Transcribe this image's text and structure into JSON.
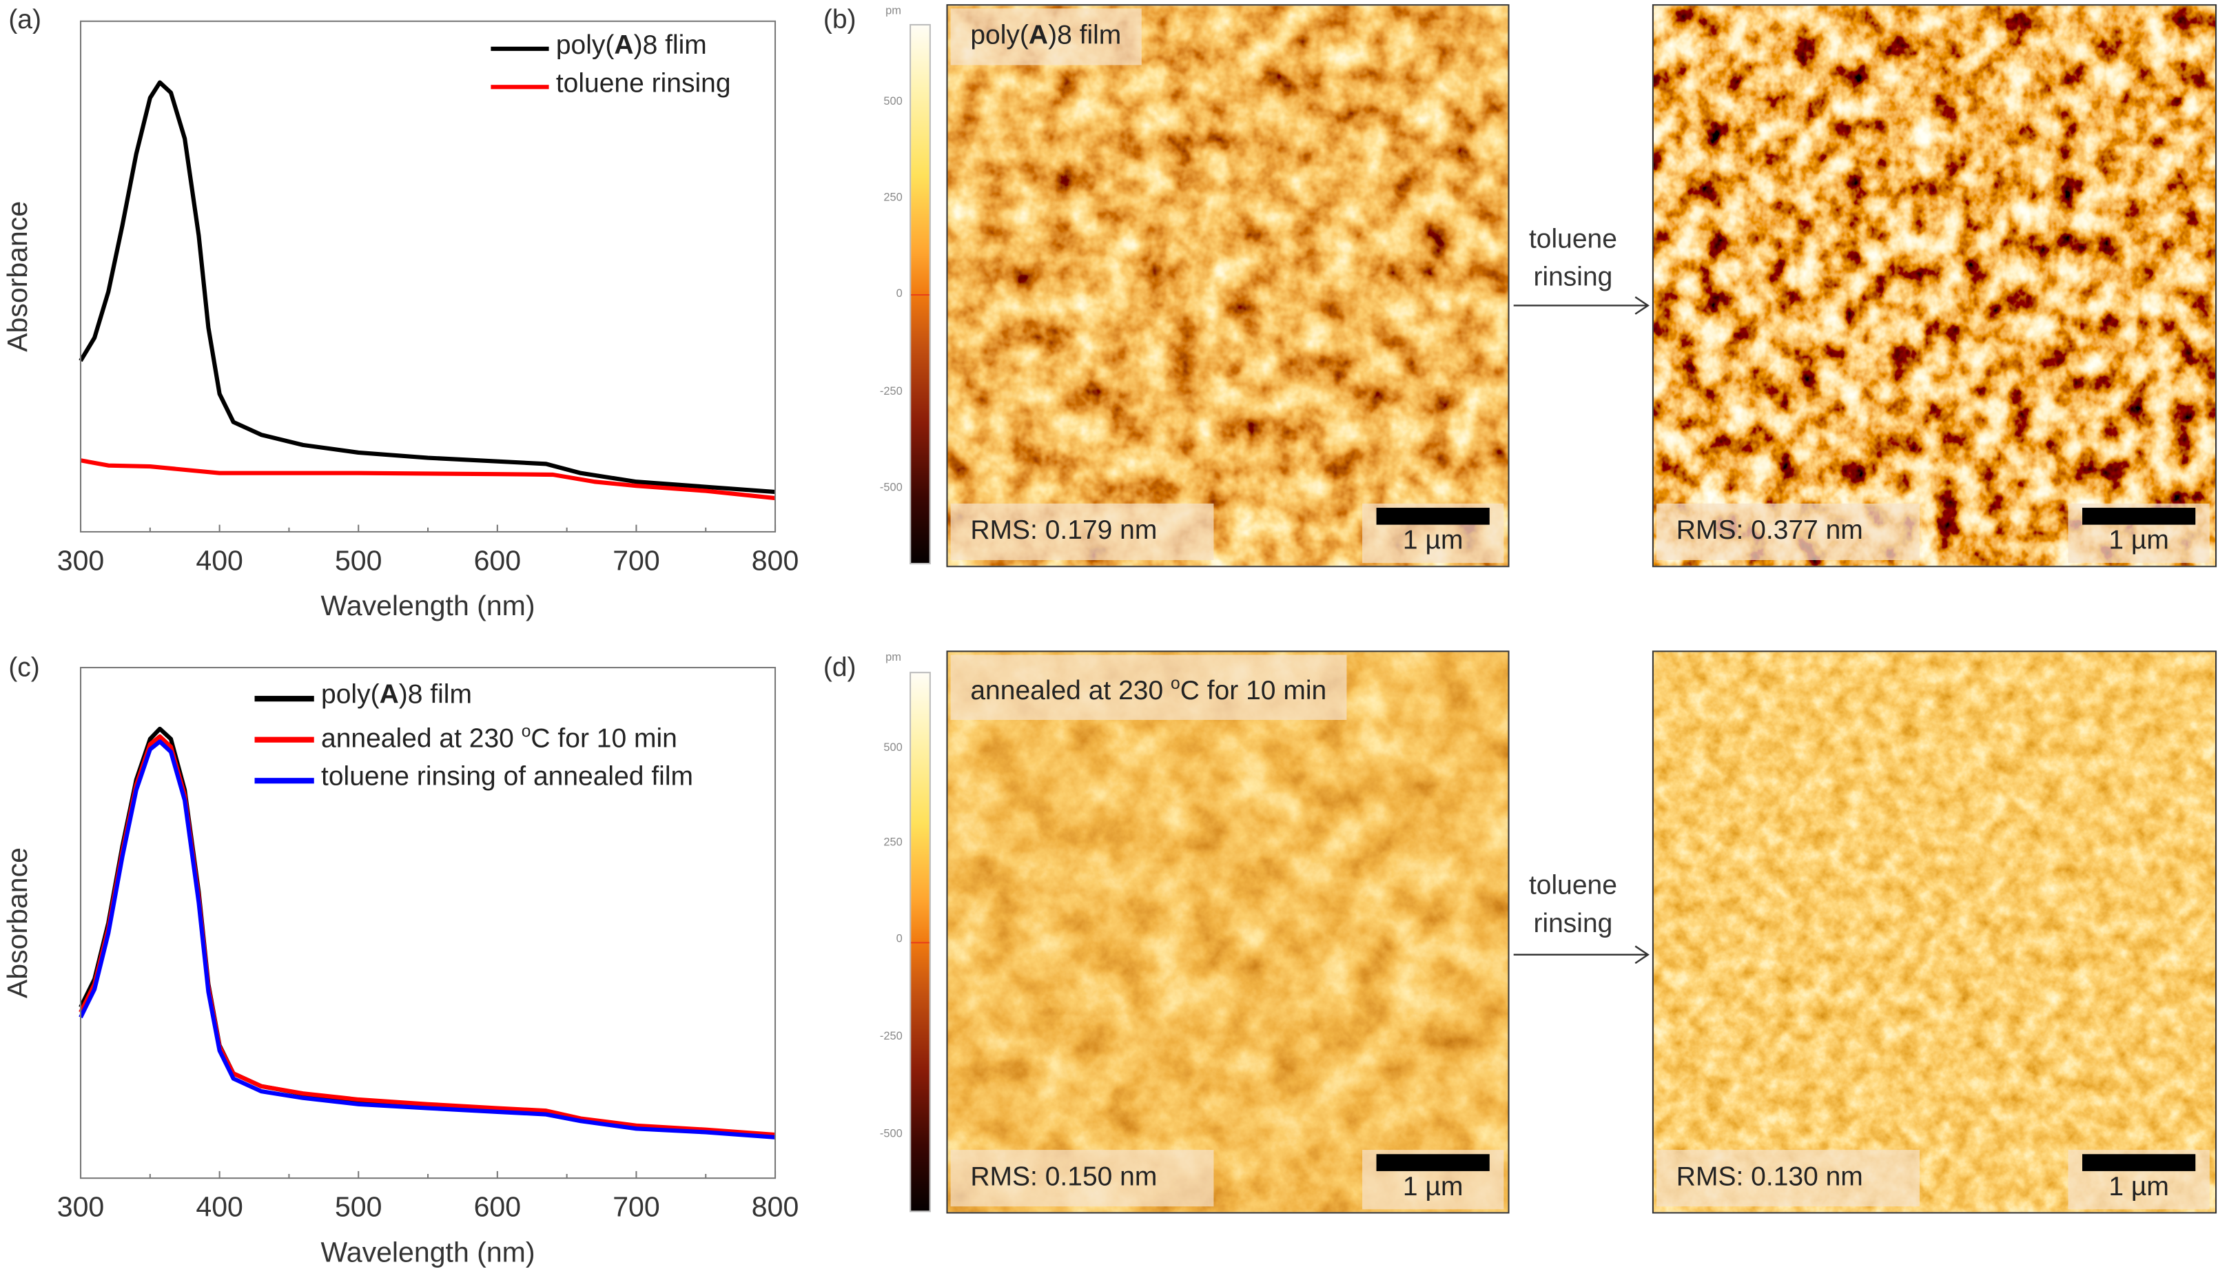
{
  "panel_labels": {
    "a": "(a)",
    "b": "(b)",
    "c": "(c)",
    "d": "(d)"
  },
  "chart_data": [
    {
      "type": "line",
      "panel": "(a)",
      "xlabel": "Wavelength (nm)",
      "ylabel": "Absorbance",
      "xlim": [
        300,
        800
      ],
      "ylim": [
        0,
        1
      ],
      "y_tick_labels": false,
      "xticks": [
        300,
        400,
        500,
        600,
        700,
        800
      ],
      "grid": false,
      "legend_placement": "top-right",
      "series": [
        {
          "name": "poly(A)8 flim",
          "name_parts": [
            "poly(",
            "A",
            ")8 flim"
          ],
          "color": "#000000",
          "points": [
            [
              300,
              0.335
            ],
            [
              310,
              0.38
            ],
            [
              320,
              0.47
            ],
            [
              330,
              0.6
            ],
            [
              340,
              0.74
            ],
            [
              350,
              0.85
            ],
            [
              357,
              0.88
            ],
            [
              365,
              0.86
            ],
            [
              375,
              0.77
            ],
            [
              385,
              0.58
            ],
            [
              392,
              0.4
            ],
            [
              400,
              0.27
            ],
            [
              410,
              0.215
            ],
            [
              430,
              0.19
            ],
            [
              460,
              0.17
            ],
            [
              500,
              0.155
            ],
            [
              550,
              0.145
            ],
            [
              600,
              0.138
            ],
            [
              635,
              0.133
            ],
            [
              660,
              0.115
            ],
            [
              700,
              0.098
            ],
            [
              750,
              0.088
            ],
            [
              800,
              0.078
            ]
          ]
        },
        {
          "name": "toluene rinsing",
          "color": "#ff0000",
          "points": [
            [
              300,
              0.14
            ],
            [
              320,
              0.13
            ],
            [
              350,
              0.128
            ],
            [
              400,
              0.115
            ],
            [
              500,
              0.115
            ],
            [
              600,
              0.113
            ],
            [
              640,
              0.112
            ],
            [
              670,
              0.098
            ],
            [
              700,
              0.09
            ],
            [
              750,
              0.08
            ],
            [
              800,
              0.066
            ]
          ]
        }
      ]
    },
    {
      "type": "line",
      "panel": "(c)",
      "xlabel": "Wavelength (nm)",
      "ylabel": "Absorbance",
      "xlim": [
        300,
        800
      ],
      "ylim": [
        0,
        1
      ],
      "y_tick_labels": false,
      "xticks": [
        300,
        400,
        500,
        600,
        700,
        800
      ],
      "grid": false,
      "legend_placement": "top-right",
      "series": [
        {
          "name": "poly(A)8 film",
          "name_parts": [
            "poly(",
            "A",
            ")8 film"
          ],
          "color": "#000000",
          "points": [
            [
              300,
              0.335
            ],
            [
              310,
              0.39
            ],
            [
              320,
              0.5
            ],
            [
              330,
              0.65
            ],
            [
              340,
              0.78
            ],
            [
              350,
              0.86
            ],
            [
              357,
              0.88
            ],
            [
              365,
              0.86
            ],
            [
              375,
              0.76
            ],
            [
              385,
              0.56
            ],
            [
              392,
              0.38
            ],
            [
              400,
              0.26
            ],
            [
              410,
              0.205
            ],
            [
              430,
              0.18
            ],
            [
              460,
              0.165
            ],
            [
              500,
              0.152
            ],
            [
              550,
              0.143
            ],
            [
              600,
              0.135
            ],
            [
              635,
              0.13
            ],
            [
              660,
              0.115
            ],
            [
              700,
              0.1
            ],
            [
              750,
              0.092
            ],
            [
              800,
              0.083
            ]
          ]
        },
        {
          "name": "annealed at 230 °C for 10 min",
          "name_parts": [
            "annealed at 230 ",
            "o",
            "C for 10 min"
          ],
          "color": "#ff0000",
          "points": [
            [
              300,
              0.325
            ],
            [
              310,
              0.38
            ],
            [
              320,
              0.49
            ],
            [
              330,
              0.64
            ],
            [
              340,
              0.77
            ],
            [
              350,
              0.85
            ],
            [
              357,
              0.865
            ],
            [
              365,
              0.845
            ],
            [
              375,
              0.75
            ],
            [
              385,
              0.55
            ],
            [
              392,
              0.375
            ],
            [
              400,
              0.258
            ],
            [
              410,
              0.205
            ],
            [
              430,
              0.18
            ],
            [
              460,
              0.166
            ],
            [
              500,
              0.154
            ],
            [
              550,
              0.145
            ],
            [
              600,
              0.137
            ],
            [
              635,
              0.132
            ],
            [
              660,
              0.117
            ],
            [
              700,
              0.103
            ],
            [
              750,
              0.095
            ],
            [
              800,
              0.085
            ]
          ]
        },
        {
          "name": "toluene rinsing of annealed film",
          "color": "#0000ff",
          "points": [
            [
              300,
              0.315
            ],
            [
              310,
              0.37
            ],
            [
              320,
              0.48
            ],
            [
              330,
              0.63
            ],
            [
              340,
              0.76
            ],
            [
              350,
              0.84
            ],
            [
              357,
              0.855
            ],
            [
              365,
              0.835
            ],
            [
              375,
              0.74
            ],
            [
              385,
              0.54
            ],
            [
              392,
              0.365
            ],
            [
              400,
              0.25
            ],
            [
              410,
              0.195
            ],
            [
              430,
              0.17
            ],
            [
              460,
              0.157
            ],
            [
              500,
              0.145
            ],
            [
              550,
              0.137
            ],
            [
              600,
              0.13
            ],
            [
              635,
              0.125
            ],
            [
              660,
              0.112
            ],
            [
              700,
              0.097
            ],
            [
              750,
              0.09
            ],
            [
              800,
              0.08
            ]
          ]
        }
      ]
    }
  ],
  "afm": {
    "colorbar": {
      "unit": "pm",
      "ticks": [
        "500",
        "250",
        "0",
        "-250",
        "-500"
      ],
      "range": [
        -700,
        700
      ],
      "colors": [
        "#050000",
        "#8a1c08",
        "#f07a10",
        "#ffe15a",
        "#fffdf5"
      ]
    },
    "b": {
      "before": {
        "title_parts": [
          "poly(",
          "A",
          ")8 film"
        ],
        "rms": "RMS: 0.179 nm",
        "scale": "1 µm"
      },
      "after": {
        "rms": "RMS: 0.377 nm",
        "scale": "1 µm"
      },
      "arrow": [
        "toluene",
        "rinsing"
      ]
    },
    "d": {
      "before": {
        "title_parts": [
          "annealed at 230 ",
          "o",
          "C for 10 min"
        ],
        "rms": "RMS: 0.150 nm",
        "scale": "1 µm"
      },
      "after": {
        "rms": "RMS: 0.130 nm",
        "scale": "1 µm"
      },
      "arrow": [
        "toluene",
        "rinsing"
      ]
    }
  }
}
